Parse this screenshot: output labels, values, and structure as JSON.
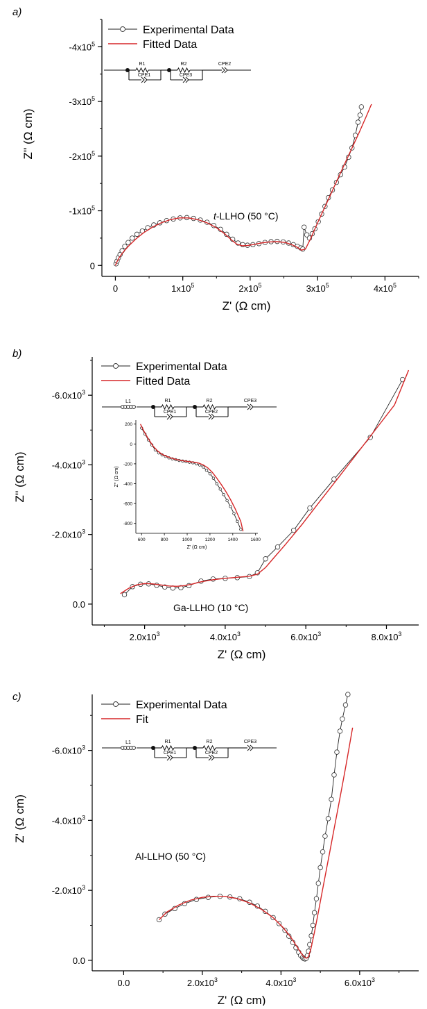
{
  "chart_data": [
    {
      "panel_label": "a)",
      "type": "scatter",
      "xlabel": "Z' (Ω cm)",
      "ylabel": "Z'' (Ω cm)",
      "xlim": [
        -20000,
        450000
      ],
      "ylim": [
        -20000,
        450000
      ],
      "x_ticks": [
        {
          "v": 0,
          "m": "0",
          "e": ""
        },
        {
          "v": 100000,
          "m": "1x10",
          "e": "5"
        },
        {
          "v": 200000,
          "m": "2x10",
          "e": "5"
        },
        {
          "v": 300000,
          "m": "3x10",
          "e": "5"
        },
        {
          "v": 400000,
          "m": "4x10",
          "e": "5"
        }
      ],
      "y_ticks": [
        {
          "v": 0,
          "m": "0",
          "e": ""
        },
        {
          "v": 100000,
          "m": "-1x10",
          "e": "5"
        },
        {
          "v": 200000,
          "m": "-2x10",
          "e": "5"
        },
        {
          "v": 300000,
          "m": "-3x10",
          "e": "5"
        },
        {
          "v": 400000,
          "m": "-4x10",
          "e": "5"
        }
      ],
      "legend": [
        "Experimental Data",
        "Fitted Data"
      ],
      "annotation": {
        "italic": "t",
        "rest": "-LLHO (50 °C)"
      },
      "circuit": [
        "R1",
        "R2",
        "CPE1",
        "CPE3",
        "CPE2"
      ],
      "series": [
        {
          "name": "Experimental Data",
          "x": [
            1000,
            2500,
            4500,
            7000,
            10000,
            14000,
            19000,
            25000,
            32000,
            40000,
            48000,
            57000,
            66000,
            76000,
            86000,
            96000,
            106000,
            116000,
            126000,
            136000,
            146000,
            156000,
            165000,
            174000,
            182000,
            189000,
            196000,
            204000,
            213000,
            222000,
            231000,
            240000,
            249000,
            257000,
            264000,
            270000,
            275000,
            278000,
            280000,
            284000,
            288000,
            292000,
            296000,
            301000,
            306000,
            311000,
            316000,
            322000,
            328000,
            334000,
            340000,
            346000,
            351000,
            356000,
            360000,
            363000,
            365000
          ],
          "y": [
            3000,
            8000,
            14000,
            20000,
            27000,
            35000,
            42000,
            50000,
            57000,
            63000,
            69000,
            74000,
            78000,
            82000,
            85000,
            87000,
            87500,
            86000,
            83000,
            79000,
            73000,
            66000,
            57000,
            48000,
            41000,
            38000,
            37000,
            38000,
            40000,
            42000,
            43500,
            44000,
            43000,
            41000,
            38000,
            35000,
            32000,
            30000,
            70000,
            56000,
            50000,
            58000,
            67000,
            80000,
            94000,
            108000,
            124000,
            138000,
            152000,
            166000,
            180000,
            198000,
            215000,
            238000,
            262000,
            275000,
            290000
          ]
        },
        {
          "name": "Fitted Data",
          "x": [
            0,
            2000,
            6000,
            12000,
            20000,
            30000,
            42000,
            55000,
            68000,
            82000,
            95000,
            108000,
            122000,
            136000,
            150000,
            162000,
            172000,
            180000,
            188000,
            196000,
            206000,
            216000,
            228000,
            240000,
            252000,
            262000,
            270000,
            276000,
            282000,
            290000,
            300000,
            312000,
            325000,
            338000,
            350000,
            362000,
            372000,
            380000
          ],
          "y": [
            0,
            6000,
            15000,
            25000,
            36000,
            48000,
            60000,
            70000,
            78000,
            84000,
            87000,
            87000,
            84000,
            78000,
            69000,
            58000,
            47000,
            39000,
            36000,
            36500,
            38500,
            41000,
            43000,
            43500,
            42000,
            38000,
            33000,
            28000,
            30000,
            50000,
            78000,
            110000,
            145000,
            180000,
            212000,
            244000,
            272000,
            295000
          ]
        }
      ]
    },
    {
      "panel_label": "b)",
      "type": "scatter",
      "xlabel": "Z' (Ω cm)",
      "ylabel": "Z'' (Ω cm)",
      "xlim": [
        700,
        8800
      ],
      "ylim": [
        -600,
        7100
      ],
      "x_ticks": [
        {
          "v": 2000,
          "m": "2.0x10",
          "e": "3"
        },
        {
          "v": 4000,
          "m": "4.0x10",
          "e": "3"
        },
        {
          "v": 6000,
          "m": "6.0x10",
          "e": "3"
        },
        {
          "v": 8000,
          "m": "8.0x10",
          "e": "3"
        }
      ],
      "y_ticks": [
        {
          "v": 0,
          "m": "0.0",
          "e": ""
        },
        {
          "v": 2000,
          "m": "-2.0x10",
          "e": "3"
        },
        {
          "v": 4000,
          "m": "-4.0x10",
          "e": "3"
        },
        {
          "v": 6000,
          "m": "-6.0x10",
          "e": "3"
        }
      ],
      "legend": [
        "Experimental Data",
        "Fitted Data"
      ],
      "annotation": {
        "italic": "",
        "rest": "Ga-LLHO (10 °C)"
      },
      "circuit": [
        "L1",
        "R1",
        "R2",
        "CPE1",
        "CPE2",
        "CPE3"
      ],
      "series": [
        {
          "name": "Experimental Data",
          "x": [
            1500,
            1700,
            1900,
            2100,
            2300,
            2500,
            2700,
            2900,
            3100,
            3400,
            3700,
            4000,
            4300,
            4600,
            4800,
            5000,
            5300,
            5700,
            6100,
            6700,
            7600,
            8400
          ],
          "y": [
            270,
            500,
            570,
            580,
            540,
            490,
            460,
            470,
            530,
            660,
            720,
            740,
            760,
            790,
            900,
            1300,
            1640,
            2120,
            2760,
            3590,
            4790,
            6450
          ]
        },
        {
          "name": "Fitted Data",
          "x": [
            1400,
            1600,
            1800,
            2000,
            2200,
            2400,
            2600,
            2800,
            3000,
            3200,
            3400,
            3700,
            4000,
            4300,
            4600,
            4800,
            5000,
            5200,
            5500,
            5900,
            6300,
            6800,
            7300,
            7800,
            8200,
            8550
          ],
          "y": [
            300,
            450,
            550,
            590,
            580,
            550,
            520,
            510,
            530,
            580,
            640,
            700,
            740,
            770,
            800,
            860,
            1050,
            1320,
            1720,
            2280,
            2880,
            3620,
            4370,
            5120,
            5720,
            6720
          ]
        }
      ],
      "inset": {
        "type": "scatter",
        "xlabel": "Z' (Ω cm)",
        "ylabel": "Z'' (Ω cm)",
        "xlim": [
          550,
          1620
        ],
        "ylim": [
          -900,
          240
        ],
        "x_ticks": [
          {
            "v": 600,
            "l": "600"
          },
          {
            "v": 800,
            "l": "800"
          },
          {
            "v": 1000,
            "l": "1000"
          },
          {
            "v": 1200,
            "l": "1200"
          },
          {
            "v": 1400,
            "l": "1400"
          },
          {
            "v": 1600,
            "l": "1600"
          }
        ],
        "y_ticks": [
          {
            "v": -800,
            "l": "-800"
          },
          {
            "v": -600,
            "l": "-600"
          },
          {
            "v": -400,
            "l": "-400"
          },
          {
            "v": -200,
            "l": "-200"
          },
          {
            "v": 0,
            "l": "0"
          },
          {
            "v": 200,
            "l": "200"
          }
        ],
        "series": [
          {
            "name": "Experimental Data",
            "x": [
              600,
              630,
              660,
              690,
              720,
              750,
              780,
              810,
              840,
              870,
              900,
              930,
              960,
              990,
              1020,
              1050,
              1080,
              1110,
              1140,
              1170,
              1200,
              1230,
              1260,
              1290,
              1320,
              1350,
              1380,
              1410,
              1440,
              1470
            ],
            "y": [
              160,
              100,
              40,
              -10,
              -60,
              -90,
              -110,
              -125,
              -140,
              -150,
              -158,
              -166,
              -172,
              -178,
              -184,
              -190,
              -200,
              -212,
              -232,
              -265,
              -300,
              -345,
              -400,
              -455,
              -510,
              -570,
              -630,
              -700,
              -780,
              -860
            ]
          },
          {
            "name": "Fitted Data",
            "x": [
              590,
              620,
              660,
              700,
              740,
              780,
              820,
              860,
              900,
              940,
              980,
              1020,
              1060,
              1100,
              1140,
              1180,
              1220,
              1260,
              1300,
              1340,
              1380,
              1420,
              1470,
              1490
            ],
            "y": [
              200,
              130,
              50,
              -20,
              -70,
              -105,
              -125,
              -142,
              -155,
              -165,
              -172,
              -178,
              -184,
              -192,
              -210,
              -240,
              -285,
              -345,
              -410,
              -480,
              -560,
              -650,
              -780,
              -880
            ]
          }
        ]
      }
    },
    {
      "panel_label": "c)",
      "type": "scatter",
      "xlabel": "Z' (Ω cm)",
      "ylabel": "Z' (Ω cm)",
      "xlim": [
        -800,
        7500
      ],
      "ylim": [
        -300,
        7600
      ],
      "x_ticks": [
        {
          "v": 0,
          "m": "0.0",
          "e": ""
        },
        {
          "v": 2000,
          "m": "2.0x10",
          "e": "3"
        },
        {
          "v": 4000,
          "m": "4.0x10",
          "e": "3"
        },
        {
          "v": 6000,
          "m": "6.0x10",
          "e": "3"
        }
      ],
      "y_ticks": [
        {
          "v": 0,
          "m": "0.0",
          "e": ""
        },
        {
          "v": 2000,
          "m": "-2.0x10",
          "e": "3"
        },
        {
          "v": 4000,
          "m": "-4.0x10",
          "e": "3"
        },
        {
          "v": 6000,
          "m": "-6.0x10",
          "e": "3"
        }
      ],
      "legend": [
        "Experimental Data",
        "Fit"
      ],
      "annotation": {
        "italic": "",
        "rest": "Al-LLHO (50 °C)"
      },
      "circuit": [
        "L1",
        "R1",
        "R2",
        "CPE1",
        "CPE2",
        "CPE3"
      ],
      "series": [
        {
          "name": "Experimental Data",
          "x": [
            900,
            1050,
            1300,
            1550,
            1850,
            2150,
            2450,
            2700,
            2950,
            3200,
            3400,
            3600,
            3800,
            3950,
            4100,
            4200,
            4300,
            4380,
            4450,
            4500,
            4550,
            4580,
            4610,
            4640,
            4670,
            4700,
            4730,
            4770,
            4810,
            4850,
            4900,
            4950,
            5000,
            5060,
            5120,
            5200,
            5280,
            5350,
            5420,
            5500,
            5560,
            5640,
            5700
          ],
          "y": [
            1160,
            1320,
            1480,
            1620,
            1740,
            1800,
            1830,
            1810,
            1760,
            1660,
            1550,
            1400,
            1220,
            1050,
            860,
            690,
            510,
            360,
            230,
            140,
            80,
            50,
            40,
            60,
            130,
            260,
            450,
            700,
            1000,
            1360,
            1760,
            2200,
            2650,
            3100,
            3550,
            4050,
            4600,
            5300,
            5950,
            6550,
            6900,
            7300,
            7600
          ]
        },
        {
          "name": "Fit",
          "x": [
            900,
            1100,
            1400,
            1700,
            2000,
            2300,
            2600,
            2900,
            3200,
            3500,
            3800,
            4050,
            4250,
            4400,
            4520,
            4600,
            4650,
            4700,
            4760,
            4850,
            4950,
            5050,
            5150,
            5250,
            5350,
            5450,
            5550,
            5650,
            5750,
            5820
          ],
          "y": [
            1160,
            1380,
            1580,
            1720,
            1800,
            1830,
            1820,
            1760,
            1640,
            1460,
            1220,
            940,
            660,
            400,
            190,
            80,
            60,
            110,
            330,
            800,
            1380,
            1980,
            2570,
            3160,
            3760,
            4350,
            4950,
            5560,
            6200,
            6650
          ]
        }
      ]
    }
  ]
}
